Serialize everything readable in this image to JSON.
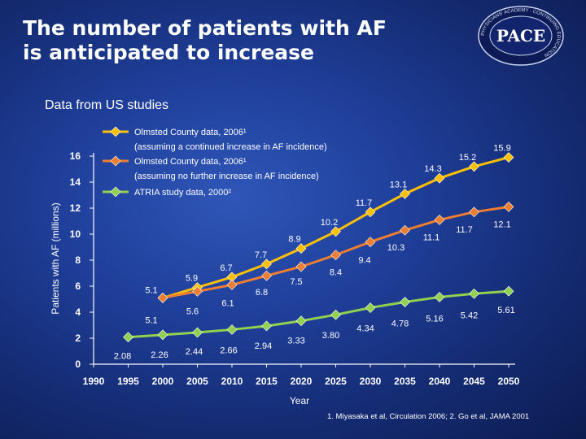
{
  "slide": {
    "title_line1": "The number of patients with AF",
    "title_line2": "is anticipated to increase",
    "subtitle": "Data from US studies",
    "logo_text": "PACE",
    "logo_ring_text": "PHYSICIANS' ACADEMY · CONTINUING EDUCATION",
    "citation": "1. Miyasaka et al, Circulation 2006; 2. Go et al, JAMA 2001"
  },
  "chart_data": {
    "type": "line",
    "title": "",
    "xlabel": "Year",
    "ylabel": "Patients with AF (millions)",
    "xlim": [
      1990,
      2050
    ],
    "ylim": [
      0,
      16
    ],
    "x_ticks": [
      "1990",
      "1995",
      "2000",
      "2005",
      "2010",
      "2015",
      "2020",
      "2025",
      "2030",
      "2035",
      "2040",
      "2045",
      "2050"
    ],
    "y_ticks": [
      "0",
      "2",
      "4",
      "6",
      "8",
      "10",
      "12",
      "14",
      "16"
    ],
    "grid": false,
    "legend_position": "top-left",
    "series": [
      {
        "legend_lines": [
          "Olmsted County data, 2006¹",
          "(assuming a continued increase in AF incidence)"
        ],
        "color": "#ffc000",
        "x": [
          2000,
          2005,
          2010,
          2015,
          2020,
          2025,
          2030,
          2035,
          2040,
          2045,
          2050
        ],
        "values": [
          5.1,
          5.9,
          6.7,
          7.7,
          8.9,
          10.2,
          11.7,
          13.1,
          14.3,
          15.2,
          15.9
        ],
        "labels": [
          "5.1",
          "5.9",
          "6.7",
          "7.7",
          "8.9",
          "10.2",
          "11.7",
          "13.1",
          "14.3",
          "15.2",
          "15.9"
        ]
      },
      {
        "legend_lines": [
          "Olmsted County data, 2006¹",
          "(assuming no further increase in AF incidence)"
        ],
        "color": "#ed7d31",
        "x": [
          2000,
          2005,
          2010,
          2015,
          2020,
          2025,
          2030,
          2035,
          2040,
          2045,
          2050
        ],
        "values": [
          5.1,
          5.6,
          6.1,
          6.8,
          7.5,
          8.4,
          9.4,
          10.3,
          11.1,
          11.7,
          12.1
        ],
        "labels": [
          "5.1",
          "5.6",
          "6.1",
          "6.8",
          "7.5",
          "8.4",
          "9.4",
          "10.3",
          "11.1",
          "11.7",
          "12.1"
        ]
      },
      {
        "legend_lines": [
          "ATRIA study data, 2000²"
        ],
        "color": "#92d050",
        "x": [
          1995,
          2000,
          2005,
          2010,
          2015,
          2020,
          2025,
          2030,
          2035,
          2040,
          2045,
          2050
        ],
        "values": [
          2.08,
          2.26,
          2.44,
          2.66,
          2.94,
          3.33,
          3.8,
          4.34,
          4.78,
          5.16,
          5.42,
          5.61
        ],
        "labels": [
          "2.08",
          "2.26",
          "2.44",
          "2.66",
          "2.94",
          "3.33",
          "3.80",
          "4.34",
          "4.78",
          "5.16",
          "5.42",
          "5.61"
        ]
      }
    ]
  }
}
